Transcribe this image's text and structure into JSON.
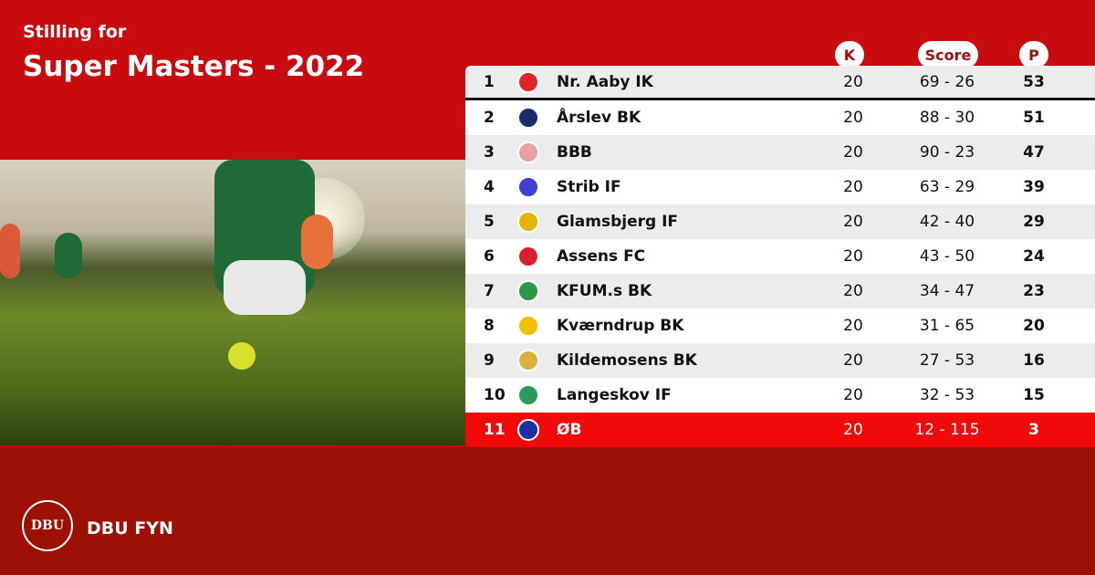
{
  "header": {
    "subtitle": "Stilling for",
    "title": "Super Masters - 2022"
  },
  "columns": {
    "k": "K",
    "score": "Score",
    "p": "P"
  },
  "rows": [
    {
      "pos": "1",
      "team": "Nr. Aaby IK",
      "k": "20",
      "score": "69 - 26",
      "p": "53",
      "logo_color": "#e0262b"
    },
    {
      "pos": "2",
      "team": "Årslev BK",
      "k": "20",
      "score": "88 - 30",
      "p": "51",
      "logo_color": "#1b2a6b"
    },
    {
      "pos": "3",
      "team": "BBB",
      "k": "20",
      "score": "90 - 23",
      "p": "47",
      "logo_color": "#e8a0a0"
    },
    {
      "pos": "4",
      "team": "Strib IF",
      "k": "20",
      "score": "63 - 29",
      "p": "39",
      "logo_color": "#4040d0"
    },
    {
      "pos": "5",
      "team": "Glamsbjerg IF",
      "k": "20",
      "score": "42 - 40",
      "p": "29",
      "logo_color": "#e3b400"
    },
    {
      "pos": "6",
      "team": "Assens FC",
      "k": "20",
      "score": "43 - 50",
      "p": "24",
      "logo_color": "#d8202a"
    },
    {
      "pos": "7",
      "team": "KFUM.s BK",
      "k": "20",
      "score": "34 - 47",
      "p": "23",
      "logo_color": "#2a9a4a"
    },
    {
      "pos": "8",
      "team": "Kværndrup BK",
      "k": "20",
      "score": "31 - 65",
      "p": "20",
      "logo_color": "#f0c000"
    },
    {
      "pos": "9",
      "team": "Kildemosens BK",
      "k": "20",
      "score": "27 - 53",
      "p": "16",
      "logo_color": "#d8b040"
    },
    {
      "pos": "10",
      "team": "Langeskov IF",
      "k": "20",
      "score": "32 - 53",
      "p": "15",
      "logo_color": "#2a9a5a"
    },
    {
      "pos": "11",
      "team": "ØB",
      "k": "20",
      "score": "12 - 115",
      "p": "3",
      "logo_color": "#2030a0"
    }
  ],
  "footer": {
    "logo_text": "DBU",
    "brand": "DBU FYN"
  },
  "colors": {
    "top": "#c80b0f",
    "bottom": "#9c1006",
    "highlight": "#f00a0a"
  }
}
